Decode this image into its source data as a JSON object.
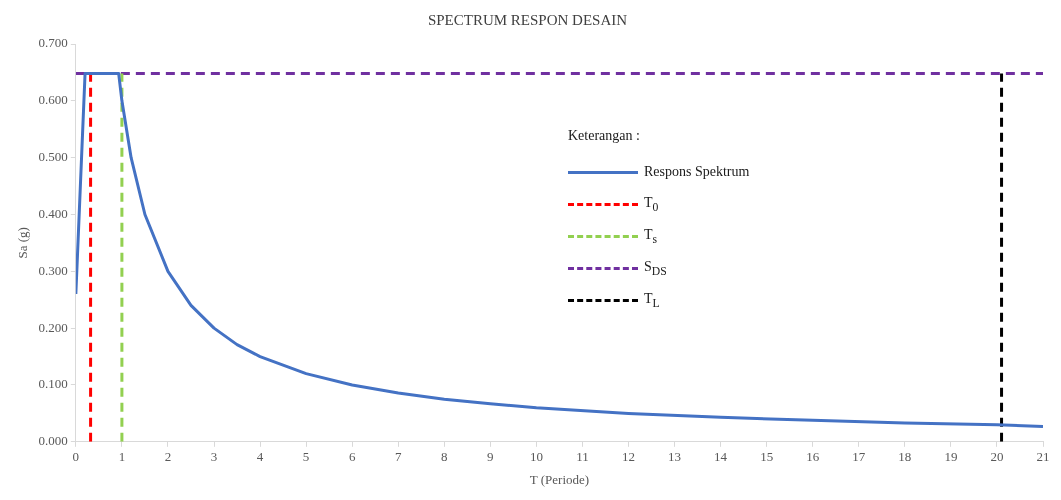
{
  "chart_data": {
    "type": "line",
    "title": "SPECTRUM RESPON DESAIN",
    "xlabel": "T (Periode)",
    "ylabel": "Sa (g)",
    "legend_title": "Keterangan :",
    "series": [
      {
        "name": "Respons Spektrum",
        "color": "#4472c4",
        "line_style": "solid",
        "x": [
          0,
          0.2,
          0.93,
          1,
          1.2,
          1.5,
          2,
          2.5,
          3,
          3.5,
          4,
          5,
          6,
          7,
          8,
          9,
          10,
          12,
          14,
          16,
          18,
          20,
          21
        ],
        "values": [
          0.26,
          0.648,
          0.648,
          0.6,
          0.5,
          0.4,
          0.3,
          0.24,
          0.2,
          0.171,
          0.15,
          0.12,
          0.1,
          0.086,
          0.075,
          0.067,
          0.06,
          0.05,
          0.043,
          0.038,
          0.033,
          0.03,
          0.027
        ]
      },
      {
        "name": "T$_{0}$",
        "color": "#ff0000",
        "line_style": "dashed",
        "x": [
          0.32,
          0.32
        ],
        "values": [
          0,
          0.648
        ]
      },
      {
        "name": "T$_{s}$",
        "color": "#92d050",
        "line_style": "dashed",
        "x": [
          1,
          1
        ],
        "values": [
          0,
          0.648
        ]
      },
      {
        "name": "S$_{DS}$",
        "color": "#7030a0",
        "line_style": "dashed",
        "x": [
          0,
          21
        ],
        "values": [
          0.648,
          0.648
        ]
      },
      {
        "name": "T$_{L}$",
        "color": "#000000",
        "line_style": "dashed",
        "x": [
          20.1,
          20.1
        ],
        "values": [
          0,
          0.648
        ]
      }
    ],
    "xlim": [
      0,
      21
    ],
    "xticks": [
      0,
      1,
      2,
      3,
      4,
      5,
      6,
      7,
      8,
      9,
      10,
      11,
      12,
      13,
      14,
      15,
      16,
      17,
      18,
      19,
      20,
      21
    ],
    "ylim": [
      0,
      0.7
    ],
    "yticks": [
      {
        "value": 0,
        "label": "0.000"
      },
      {
        "value": 0.1,
        "label": "0.100"
      },
      {
        "value": 0.2,
        "label": "0.200"
      },
      {
        "value": 0.3,
        "label": "0.300"
      },
      {
        "value": 0.4,
        "label": "0.400"
      },
      {
        "value": 0.5,
        "label": "0.500"
      },
      {
        "value": 0.6,
        "label": "0.600"
      },
      {
        "value": 0.7,
        "label": "0.700"
      }
    ],
    "grid": false,
    "legend": "top right",
    "marker": "none"
  }
}
